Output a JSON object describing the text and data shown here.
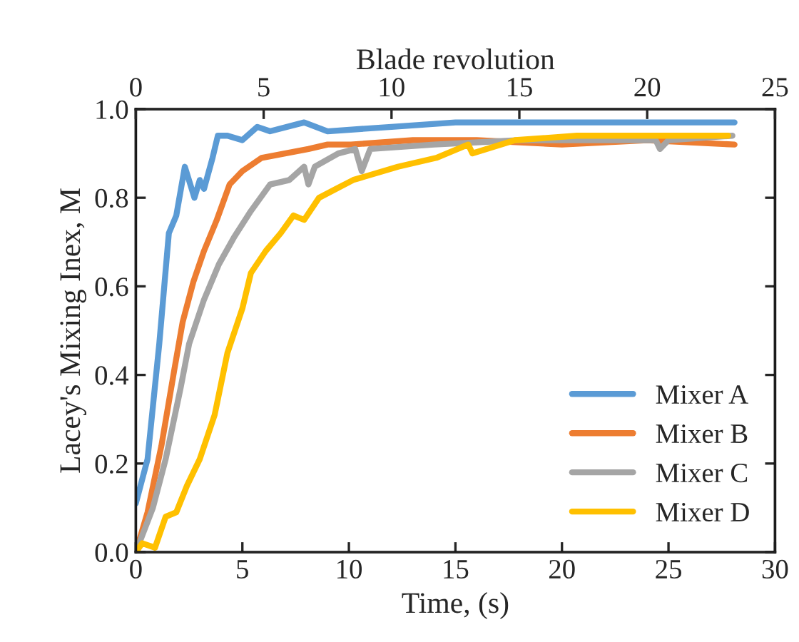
{
  "chart_data": {
    "type": "line",
    "xlabel": "Time, (s)",
    "ylabel": "Lacey's Mixing Inex, M",
    "x2label": "Blade revolution",
    "xlim": [
      0,
      30
    ],
    "xticks": [
      0,
      5,
      10,
      15,
      20,
      25,
      30
    ],
    "ylim": [
      0,
      1.0
    ],
    "yticks": [
      {
        "value": 0,
        "label": "0.0"
      },
      {
        "value": 0.2,
        "label": "0.2"
      },
      {
        "value": 0.4,
        "label": "0.4"
      },
      {
        "value": 0.6,
        "label": "0.6"
      },
      {
        "value": 0.8,
        "label": "0.8"
      },
      {
        "value": 1.0,
        "label": "1.0"
      }
    ],
    "x2lim": [
      0,
      25
    ],
    "x2ticks": [
      0,
      5,
      10,
      15,
      20,
      25
    ],
    "legend": "bottom right",
    "grid": false,
    "marker": "none",
    "line_style": "solid",
    "series": [
      {
        "name": "Mixer A",
        "color": "#5b9bd5",
        "x": [
          0,
          0.55,
          1.1,
          1.55,
          1.9,
          2.3,
          2.75,
          3.0,
          3.2,
          3.6,
          3.85,
          4.3,
          5.0,
          5.7,
          6.3,
          7.9,
          9.0,
          12,
          15,
          20,
          25,
          28.1
        ],
        "values": [
          0.11,
          0.21,
          0.47,
          0.72,
          0.76,
          0.87,
          0.8,
          0.84,
          0.82,
          0.89,
          0.94,
          0.94,
          0.93,
          0.96,
          0.95,
          0.97,
          0.95,
          0.96,
          0.97,
          0.97,
          0.97,
          0.97
        ]
      },
      {
        "name": "Mixer B",
        "color": "#ed7d31",
        "x": [
          0,
          0.55,
          1.2,
          1.8,
          2.2,
          2.7,
          3.2,
          3.8,
          4.4,
          5.0,
          5.9,
          7.0,
          8.1,
          9.0,
          10.1,
          13,
          16,
          20,
          24,
          28.1
        ],
        "values": [
          0.0,
          0.09,
          0.24,
          0.41,
          0.52,
          0.61,
          0.68,
          0.75,
          0.83,
          0.86,
          0.89,
          0.9,
          0.91,
          0.92,
          0.92,
          0.93,
          0.93,
          0.92,
          0.93,
          0.92
        ]
      },
      {
        "name": "Mixer C",
        "color": "#a5a5a5",
        "x": [
          0,
          0.8,
          1.4,
          2.1,
          2.5,
          3.2,
          3.9,
          4.6,
          5.4,
          6.3,
          7.2,
          7.9,
          8.1,
          8.4,
          9.5,
          10.3,
          10.6,
          11,
          14,
          18,
          22,
          24.4,
          24.6,
          25,
          28
        ],
        "values": [
          0.0,
          0.1,
          0.21,
          0.37,
          0.47,
          0.57,
          0.65,
          0.71,
          0.77,
          0.83,
          0.84,
          0.87,
          0.83,
          0.87,
          0.9,
          0.91,
          0.86,
          0.91,
          0.92,
          0.93,
          0.93,
          0.93,
          0.91,
          0.93,
          0.94
        ]
      },
      {
        "name": "Mixer D",
        "color": "#ffc000",
        "x": [
          0,
          0.3,
          0.9,
          1.4,
          1.9,
          2.4,
          3.0,
          3.7,
          4.3,
          5.0,
          5.4,
          6.1,
          6.8,
          7.4,
          7.9,
          8.6,
          9.4,
          10.2,
          12.3,
          14.1,
          15.6,
          15.8,
          17.8,
          20.7,
          22.9,
          27.8
        ],
        "values": [
          0.0,
          0.02,
          0.01,
          0.08,
          0.09,
          0.15,
          0.21,
          0.31,
          0.45,
          0.55,
          0.63,
          0.68,
          0.72,
          0.76,
          0.75,
          0.8,
          0.82,
          0.84,
          0.87,
          0.89,
          0.92,
          0.9,
          0.93,
          0.94,
          0.94,
          0.94
        ]
      }
    ]
  }
}
